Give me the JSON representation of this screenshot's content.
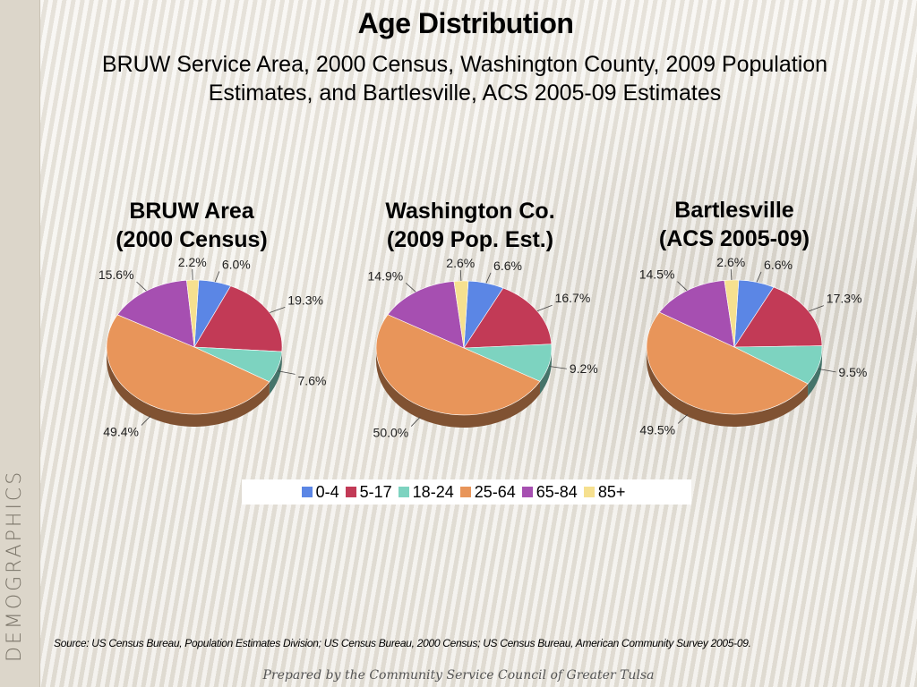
{
  "sidebar": {
    "label": "DEMOGRAPHICS"
  },
  "header": {
    "title": "Age Distribution",
    "subtitle_line1": "BRUW Service Area, 2000 Census, Washington County, 2009 Population",
    "subtitle_line2": "Estimates, and Bartlesville, ACS 2005-09 Estimates"
  },
  "colors": {
    "0-4": "#5b86e5",
    "5-17": "#c23a56",
    "18-24": "#7dd3c0",
    "25-64": "#e8955a",
    "65-84": "#a64fb1",
    "85+": "#f6e08f"
  },
  "legend": [
    "0-4",
    "5-17",
    "18-24",
    "25-64",
    "65-84",
    "85+"
  ],
  "chart_data": [
    {
      "type": "pie",
      "title_line1": "BRUW Area",
      "title_line2": "(2000 Census)",
      "categories": [
        "0-4",
        "5-17",
        "18-24",
        "25-64",
        "65-84",
        "85+"
      ],
      "values": [
        6.0,
        19.3,
        7.6,
        49.4,
        15.6,
        2.2
      ],
      "labels": [
        "6.0%",
        "19.3%",
        "7.6%",
        "49.4%",
        "15.6%",
        "2.2%"
      ]
    },
    {
      "type": "pie",
      "title_line1": "Washington Co.",
      "title_line2": "(2009 Pop. Est.)",
      "categories": [
        "0-4",
        "5-17",
        "18-24",
        "25-64",
        "65-84",
        "85+"
      ],
      "values": [
        6.6,
        16.7,
        9.2,
        50.0,
        14.9,
        2.6
      ],
      "labels": [
        "6.6%",
        "16.7%",
        "9.2%",
        "50.0%",
        "14.9%",
        "2.6%"
      ]
    },
    {
      "type": "pie",
      "title_line1": "Bartlesville",
      "title_line2": "(ACS 2005-09)",
      "categories": [
        "0-4",
        "5-17",
        "18-24",
        "25-64",
        "65-84",
        "85+"
      ],
      "values": [
        6.6,
        17.3,
        9.5,
        49.5,
        14.5,
        2.6
      ],
      "labels": [
        "6.6%",
        "17.3%",
        "9.5%",
        "49.5%",
        "14.5%",
        "2.6%"
      ]
    }
  ],
  "source": "Source:  US Census Bureau, Population Estimates Division; US Census Bureau, 2000 Census; US Census Bureau, American Community Survey 2005-09.",
  "footer": "Prepared by the Community Service Council of Greater Tulsa"
}
